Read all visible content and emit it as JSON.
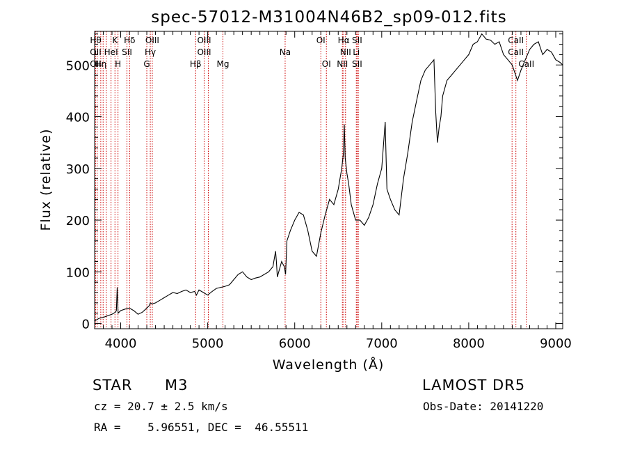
{
  "title": "spec-57012-M31004N46B2_sp09-012.fits",
  "xlabel": "Wavelength (Å)",
  "ylabel": "Flux (relative)",
  "info": {
    "class_label": "STAR",
    "subclass": "M3",
    "survey": "LAMOST DR5",
    "cz": "cz = 20.7 ± 2.5 km/s",
    "obs_date": "Obs-Date: 20141220",
    "radec": "RA =    5.96551, DEC =  46.55511"
  },
  "chart_data": {
    "type": "line",
    "title": "spec-57012-M31004N46B2_sp09-012.fits",
    "xlabel": "Wavelength (Å)",
    "ylabel": "Flux (relative)",
    "xlim": [
      3700,
      9080
    ],
    "ylim": [
      -10,
      565
    ],
    "xticks": [
      4000,
      5000,
      6000,
      7000,
      8000,
      9000
    ],
    "yticks": [
      0,
      100,
      200,
      300,
      400,
      500
    ],
    "grid": false,
    "line_color": "#000000",
    "marker_color": "#cc0000",
    "series": [
      {
        "x": [
          3700,
          3750,
          3800,
          3850,
          3900,
          3940,
          3950,
          3960,
          3970,
          4000,
          4050,
          4100,
          4150,
          4200,
          4250,
          4300,
          4330,
          4340,
          4360,
          4400,
          4450,
          4500,
          4550,
          4600,
          4650,
          4700,
          4750,
          4800,
          4850,
          4870,
          4900,
          4950,
          5000,
          5050,
          5100,
          5150,
          5200,
          5250,
          5300,
          5350,
          5400,
          5450,
          5500,
          5550,
          5600,
          5650,
          5700,
          5750,
          5780,
          5790,
          5800,
          5850,
          5880,
          5895,
          5910,
          5950,
          6000,
          6050,
          6100,
          6150,
          6200,
          6250,
          6300,
          6350,
          6400,
          6450,
          6500,
          6540,
          6560,
          6570,
          6580,
          6600,
          6620,
          6650,
          6700,
          6750,
          6800,
          6850,
          6900,
          6950,
          7000,
          7040,
          7050,
          7060,
          7080,
          7100,
          7150,
          7200,
          7250,
          7300,
          7350,
          7400,
          7450,
          7500,
          7550,
          7600,
          7620,
          7640,
          7660,
          7680,
          7700,
          7750,
          7800,
          7850,
          7900,
          7950,
          8000,
          8050,
          8100,
          8150,
          8200,
          8250,
          8300,
          8350,
          8400,
          8450,
          8500,
          8540,
          8560,
          8600,
          8650,
          8700,
          8750,
          8800,
          8850,
          8900,
          8950,
          9000,
          9050,
          9080
        ],
        "y": [
          5,
          10,
          12,
          15,
          18,
          22,
          25,
          70,
          20,
          25,
          28,
          30,
          25,
          18,
          22,
          30,
          35,
          40,
          38,
          40,
          45,
          50,
          55,
          60,
          58,
          62,
          65,
          60,
          62,
          55,
          65,
          60,
          55,
          62,
          68,
          70,
          72,
          75,
          85,
          95,
          100,
          90,
          85,
          88,
          90,
          95,
          100,
          110,
          140,
          120,
          90,
          120,
          110,
          95,
          160,
          180,
          200,
          215,
          210,
          180,
          140,
          130,
          175,
          210,
          240,
          230,
          260,
          300,
          330,
          385,
          320,
          290,
          270,
          230,
          200,
          200,
          190,
          205,
          230,
          270,
          300,
          390,
          320,
          260,
          250,
          240,
          220,
          210,
          280,
          330,
          390,
          430,
          470,
          490,
          500,
          510,
          410,
          350,
          380,
          400,
          440,
          470,
          480,
          490,
          500,
          510,
          520,
          540,
          545,
          560,
          550,
          548,
          540,
          545,
          520,
          510,
          500,
          480,
          470,
          490,
          510,
          530,
          540,
          545,
          520,
          530,
          525,
          510,
          505,
          500
        ]
      }
    ],
    "lines": [
      {
        "w": 3712,
        "labels": [
          "Hθ",
          "OII",
          "OII"
        ]
      },
      {
        "w": 3730,
        "labels": []
      },
      {
        "w": 3771,
        "labels": [
          "",
          "",
          "Hη"
        ]
      },
      {
        "w": 3798,
        "labels": []
      },
      {
        "w": 3835,
        "labels": []
      },
      {
        "w": 3889,
        "labels": [
          "",
          "HeI",
          ""
        ]
      },
      {
        "w": 3934,
        "labels": [
          "K",
          "",
          ""
        ]
      },
      {
        "w": 3969,
        "labels": [
          "",
          "",
          "H"
        ]
      },
      {
        "w": 4072,
        "labels": [
          "",
          "SII",
          ""
        ]
      },
      {
        "w": 4102,
        "labels": [
          "Hδ",
          "",
          ""
        ]
      },
      {
        "w": 4300,
        "labels": [
          "",
          "",
          "G"
        ]
      },
      {
        "w": 4340,
        "labels": [
          "",
          "Hγ",
          ""
        ]
      },
      {
        "w": 4363,
        "labels": [
          "OIII",
          "",
          ""
        ]
      },
      {
        "w": 4861,
        "labels": [
          "",
          "",
          "Hβ"
        ]
      },
      {
        "w": 4959,
        "labels": [
          "OIII",
          "OIII",
          ""
        ]
      },
      {
        "w": 5007,
        "labels": []
      },
      {
        "w": 5175,
        "labels": [
          "",
          "",
          "Mg"
        ]
      },
      {
        "w": 5890,
        "labels": [
          "",
          "Na",
          ""
        ]
      },
      {
        "w": 6300,
        "labels": [
          "OI",
          "",
          ""
        ]
      },
      {
        "w": 6364,
        "labels": [
          "",
          "",
          "OI"
        ]
      },
      {
        "w": 6548,
        "labels": [
          "",
          "",
          "NII"
        ]
      },
      {
        "w": 6563,
        "labels": [
          "Hα",
          "",
          ""
        ]
      },
      {
        "w": 6584,
        "labels": [
          "",
          "NII",
          ""
        ]
      },
      {
        "w": 6708,
        "labels": [
          "",
          "Li",
          ""
        ]
      },
      {
        "w": 6717,
        "labels": [
          "SII",
          "",
          "SII"
        ]
      },
      {
        "w": 6731,
        "labels": []
      },
      {
        "w": 8498,
        "labels": []
      },
      {
        "w": 8542,
        "labels": [
          "CaII",
          "CaII",
          ""
        ]
      },
      {
        "w": 8662,
        "labels": [
          "",
          "",
          "CaII"
        ]
      }
    ]
  }
}
